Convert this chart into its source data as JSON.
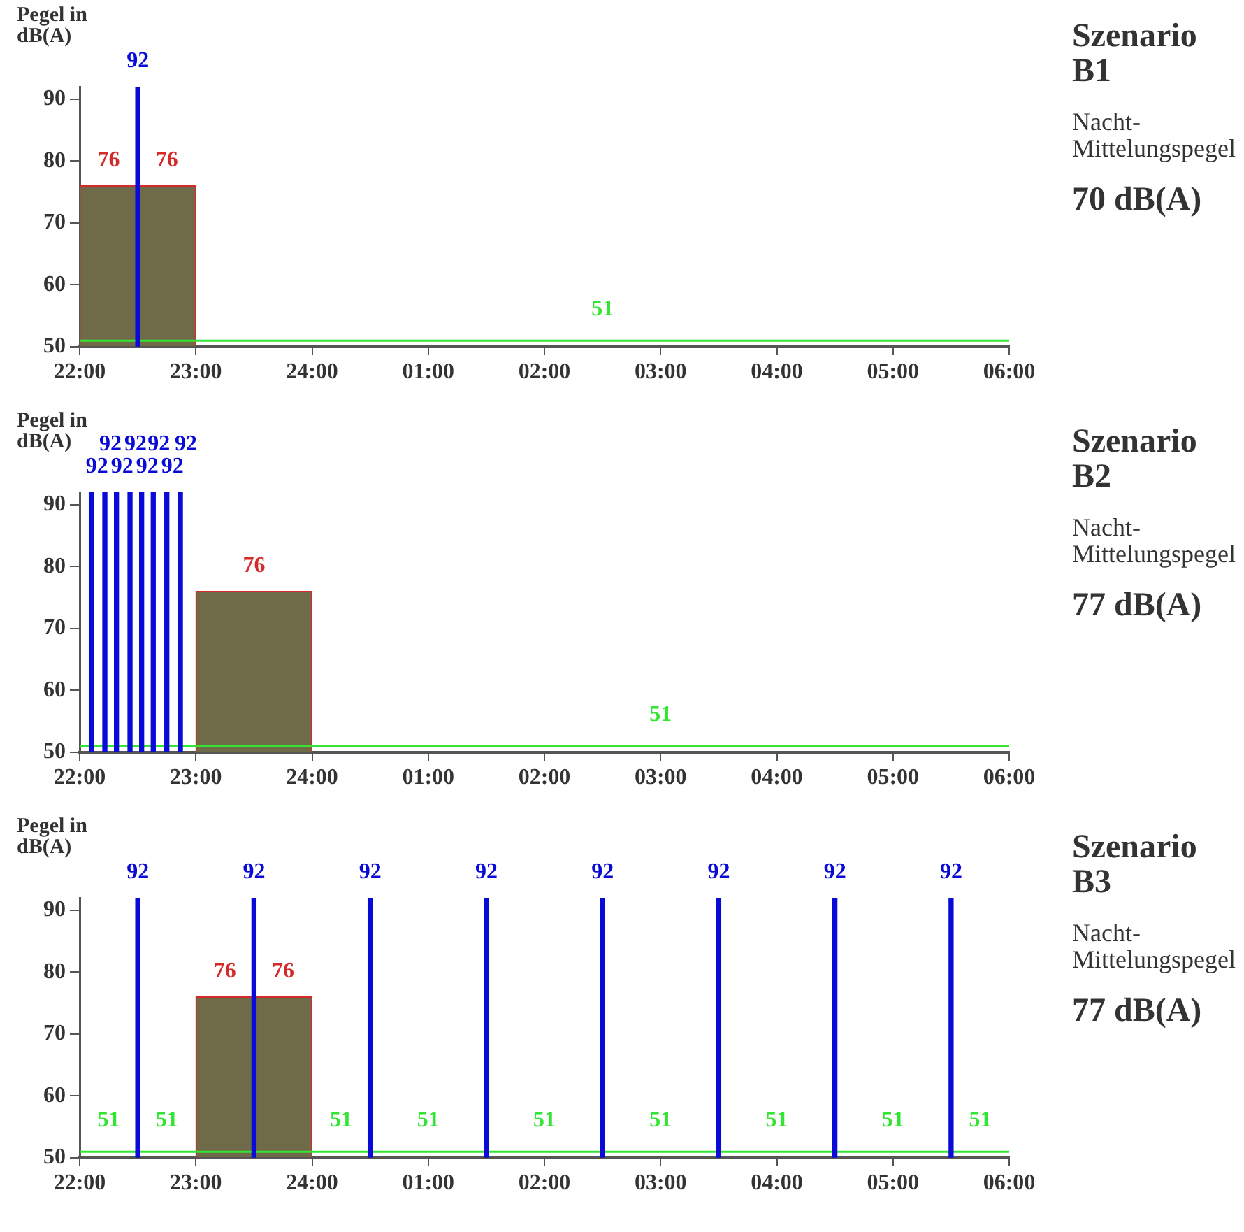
{
  "chart_data": [
    {
      "type": "bar",
      "annotations": [
        "Szenario B1",
        "Nacht-Mittelungspegel",
        "70 dB(A)"
      ],
      "ylabel": "Pegel in dB(A)",
      "xlim": [
        "2000-01-01T22:00",
        "2000-01-02T06:00"
      ],
      "xticks": [
        {
          "value": "2000-01-01T22:00",
          "label": "22:00"
        },
        {
          "value": "2000-01-01T23:00",
          "label": "23:00"
        },
        {
          "value": "2000-01-02T00:00",
          "label": "24:00"
        },
        {
          "value": "2000-01-02T01:00",
          "label": "01:00"
        },
        {
          "value": "2000-01-02T02:00",
          "label": "02:00"
        },
        {
          "value": "2000-01-02T03:00",
          "label": "03:00"
        },
        {
          "value": "2000-01-02T04:00",
          "label": "04:00"
        },
        {
          "value": "2000-01-02T05:00",
          "label": "05:00"
        },
        {
          "value": "2000-01-02T06:00",
          "label": "06:00"
        }
      ],
      "ylim": [
        50,
        92
      ],
      "yticks": [
        50,
        60,
        70,
        80,
        90
      ],
      "series": [
        {
          "type": "histogram",
          "color": "#6f6b48",
          "bins": [
            "2000-01-01T22:00",
            "2000-01-01T22:30",
            "2000-01-01T23:00"
          ],
          "values": [
            76,
            76
          ],
          "value_labels": [
            "76",
            "76"
          ]
        },
        {
          "type": "line",
          "color": "#33e533",
          "x": [
            "2000-01-01T22:00",
            "2000-01-01T23:00",
            "2000-01-02T02:30",
            "2000-01-02T06:00"
          ],
          "values": [
            51,
            51,
            51,
            51
          ],
          "value_labels": [
            null,
            null,
            "51",
            null
          ]
        },
        {
          "color": "#0a0ad8",
          "x": [
            "2000-01-01T22:30"
          ],
          "values": [
            92
          ],
          "value_labels": [
            "92"
          ]
        }
      ]
    },
    {
      "type": "bar",
      "annotations": [
        "Szenario B2",
        "Nacht-Mittelungspegel",
        "77 dB(A)"
      ],
      "ylabel": "Pegel in dB(A)",
      "xlim": [
        "2000-01-01T22:00",
        "2000-01-02T06:00"
      ],
      "xticks": [
        {
          "value": "2000-01-01T22:00",
          "label": "22:00"
        },
        {
          "value": "2000-01-01T23:00",
          "label": "23:00"
        },
        {
          "value": "2000-01-02T00:00",
          "label": "24:00"
        },
        {
          "value": "2000-01-02T01:00",
          "label": "01:00"
        },
        {
          "value": "2000-01-02T02:00",
          "label": "02:00"
        },
        {
          "value": "2000-01-02T03:00",
          "label": "03:00"
        },
        {
          "value": "2000-01-02T04:00",
          "label": "04:00"
        },
        {
          "value": "2000-01-02T05:00",
          "label": "05:00"
        },
        {
          "value": "2000-01-02T06:00",
          "label": "06:00"
        }
      ],
      "ylim": [
        50,
        92
      ],
      "yticks": [
        50,
        60,
        70,
        80,
        90
      ],
      "series": [
        {
          "type": "histogram",
          "color": "#6f6b48",
          "bins": [
            "2000-01-01T23:00",
            "2000-01-02T00:00"
          ],
          "values": [
            76
          ],
          "value_labels": [
            "76"
          ]
        },
        {
          "type": "line",
          "color": "#33e533",
          "x": [
            "2000-01-01T22:00",
            "2000-01-01T23:00",
            "2000-01-02T00:00",
            "2000-01-02T03:00",
            "2000-01-02T06:00"
          ],
          "values": [
            51,
            51,
            51,
            51,
            51
          ],
          "value_labels": [
            null,
            null,
            null,
            "51",
            null
          ]
        },
        {
          "color": "#0a0ad8",
          "x": [
            "2000-01-01T22:06",
            "2000-01-01T22:13",
            "2000-01-01T22:19",
            "2000-01-01T22:26",
            "2000-01-01T22:32",
            "2000-01-01T22:38",
            "2000-01-01T22:45",
            "2000-01-01T22:52"
          ],
          "values": [
            92,
            92,
            92,
            92,
            92,
            92,
            92,
            92
          ],
          "value_labels": [
            "92",
            "92",
            "92",
            "92",
            "92",
            "92",
            "92",
            "92"
          ]
        }
      ]
    },
    {
      "type": "bar",
      "annotations": [
        "Szenario B3",
        "Nacht-Mittelungspegel",
        "77 dB(A)"
      ],
      "ylabel": "Pegel in dB(A)",
      "xlim": [
        "2000-01-01T22:00",
        "2000-01-02T06:00"
      ],
      "xticks": [
        {
          "value": "2000-01-01T22:00",
          "label": "22:00"
        },
        {
          "value": "2000-01-01T23:00",
          "label": "23:00"
        },
        {
          "value": "2000-01-02T00:00",
          "label": "24:00"
        },
        {
          "value": "2000-01-02T01:00",
          "label": "01:00"
        },
        {
          "value": "2000-01-02T02:00",
          "label": "02:00"
        },
        {
          "value": "2000-01-02T03:00",
          "label": "03:00"
        },
        {
          "value": "2000-01-02T04:00",
          "label": "04:00"
        },
        {
          "value": "2000-01-02T05:00",
          "label": "05:00"
        },
        {
          "value": "2000-01-02T06:00",
          "label": "06:00"
        }
      ],
      "ylim": [
        50,
        92
      ],
      "yticks": [
        50,
        60,
        70,
        80,
        90
      ],
      "series": [
        {
          "type": "histogram",
          "color": "#6f6b48",
          "bins": [
            "2000-01-01T23:00",
            "2000-01-01T23:30",
            "2000-01-02T00:00"
          ],
          "values": [
            76,
            76
          ],
          "value_labels": [
            "76",
            "76"
          ]
        },
        {
          "type": "line",
          "color": "#33e533",
          "x": [
            "2000-01-01T22:00",
            "2000-01-01T22:15",
            "2000-01-01T22:45",
            "2000-01-02T00:15",
            "2000-01-02T01:00",
            "2000-01-02T02:00",
            "2000-01-02T03:00",
            "2000-01-02T04:00",
            "2000-01-02T05:00",
            "2000-01-02T05:45",
            "2000-01-02T06:00"
          ],
          "values": [
            51,
            51,
            51,
            51,
            51,
            51,
            51,
            51,
            51,
            51,
            51
          ],
          "value_labels": [
            null,
            "51",
            "51",
            "51",
            "51",
            "51",
            "51",
            "51",
            "51",
            "51",
            null
          ]
        },
        {
          "color": "#0a0ad8",
          "x": [
            "2000-01-01T22:30",
            "2000-01-01T23:30",
            "2000-01-02T00:30",
            "2000-01-02T01:30",
            "2000-01-02T02:30",
            "2000-01-02T03:30",
            "2000-01-02T04:30",
            "2000-01-02T05:30"
          ],
          "values": [
            92,
            92,
            92,
            92,
            92,
            92,
            92,
            92
          ],
          "value_labels": [
            "92",
            "92",
            "92",
            "92",
            "92",
            "92",
            "92",
            "92"
          ]
        }
      ]
    }
  ]
}
